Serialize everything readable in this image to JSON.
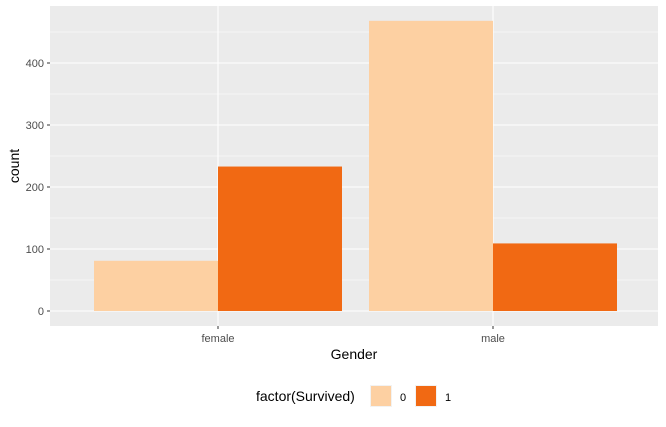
{
  "chart_data": {
    "type": "bar",
    "categories": [
      "female",
      "male"
    ],
    "xlabel": "Gender",
    "ylabel": "count",
    "ylim": [
      0,
      500
    ],
    "y_ticks": [
      0,
      100,
      200,
      300,
      400
    ],
    "series": [
      {
        "name": "0",
        "values": [
          81,
          468
        ],
        "color": "#fdd0a2"
      },
      {
        "name": "1",
        "values": [
          233,
          109
        ],
        "color": "#f16913"
      }
    ],
    "legend": {
      "title": "factor(Survived)",
      "position": "bottom"
    },
    "grid": true,
    "panel_background": "#ebebeb"
  }
}
